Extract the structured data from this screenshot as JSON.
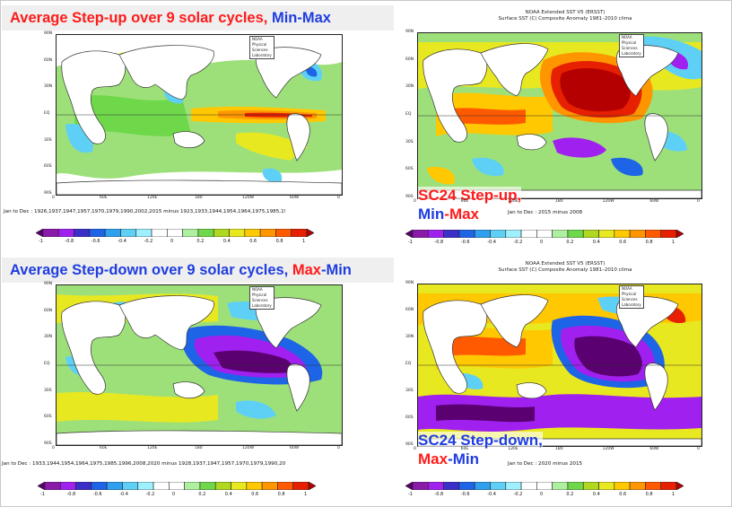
{
  "banners": {
    "top": {
      "part1": "Average Step-up over 9 solar cycles, ",
      "part2": "Min-Max"
    },
    "bottom": {
      "part1": "Average Step-down over 9 solar cycles, ",
      "part2": "Max",
      "part3": "-Min"
    }
  },
  "panels": {
    "tl": {
      "lab": "NOAA Physical Sciences Laboratory",
      "caption": "Jan to Dec : 1926,1937,1947,1957,1970,1979,1990,2002,2015 minus 1923,1933,1944,1954,1964,1975,1985,1!"
    },
    "tr": {
      "title1": "NOAA Extended SST V5 (ERSST)",
      "title2": "Surface SST (C) Composite Anomaly 1981–2010 clima",
      "lab": "NOAA Physical Sciences Laboratory",
      "caption": "Jan to Dec : 2015 minus 2008",
      "big1": "SC24 Step-up,",
      "big2a": "Min",
      "big2b": "-Max"
    },
    "bl": {
      "lab": "NOAA Physical Sciences Laboratory",
      "caption": "Jan to Dec : 1933,1944,1954,1964,1975,1985,1996,2008,2020 minus 1928,1937,1947,1957,1970,1979,1990,20"
    },
    "br": {
      "title1": "NOAA Extended SST V5 (ERSST)",
      "title2": "Surface SST (C) Composite Anomaly 1981–2010 clima",
      "lab": "NOAA Physical Sciences Laboratory",
      "caption": "Jan to Dec : 2020 minus 2015",
      "big1": "SC24 Step-down,",
      "big2a": "Max",
      "big2b": "-Min"
    }
  },
  "axes": {
    "lat": [
      "90N",
      "60N",
      "30N",
      "EQ",
      "30S",
      "60S",
      "90S"
    ],
    "lon": [
      "0",
      "60E",
      "120E",
      "180",
      "120W",
      "60W",
      "0"
    ]
  },
  "colorbar": {
    "ticks": [
      "-1",
      "-0.8",
      "-0.6",
      "-0.4",
      "-0.2",
      "0",
      "0.2",
      "0.4",
      "0.6",
      "0.8",
      "1"
    ],
    "colors": [
      "#5a0070",
      "#8a1aa8",
      "#a020f0",
      "#3b2fc9",
      "#1e64e6",
      "#2fa0f0",
      "#5fd0f5",
      "#9ff0ff",
      "#ffffff",
      "#ffffff",
      "#aef0a0",
      "#6fd84a",
      "#b0d820",
      "#e8e820",
      "#ffc800",
      "#ff9600",
      "#ff5a00",
      "#e62000",
      "#b40000"
    ]
  }
}
